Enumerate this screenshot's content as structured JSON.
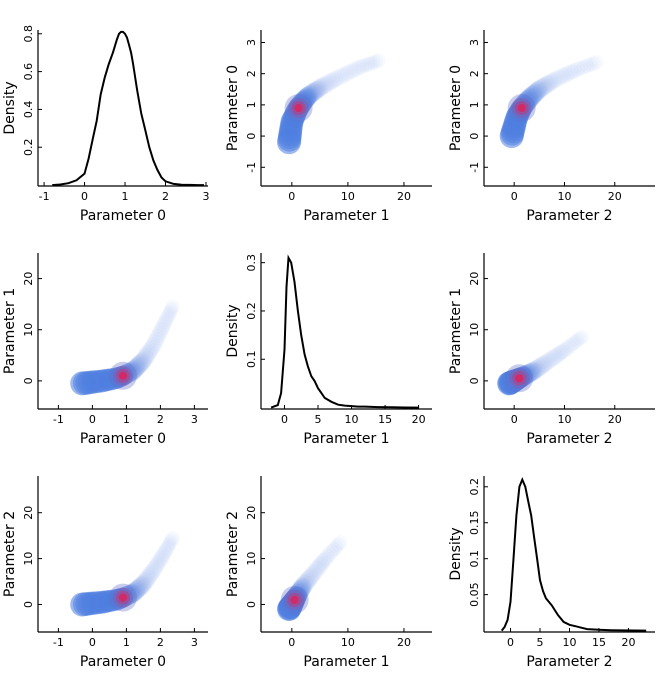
{
  "figure": {
    "type": "pairplot",
    "parameter_labels": [
      "Parameter 0",
      "Parameter 1",
      "Parameter 2"
    ],
    "density_label": "Density",
    "colors": {
      "curve": "#000000",
      "heat_low": "#4f7fe0",
      "heat_high": "#e0205a",
      "background": "#ffffff"
    }
  },
  "chart_data": [
    {
      "type": "line",
      "panel": "0-0",
      "xlabel": "Parameter 0",
      "ylabel": "Density",
      "xlim": [
        -1.15,
        3.05
      ],
      "ylim": [
        -0.005,
        0.82
      ],
      "xticks": [
        -1,
        0,
        1,
        2,
        3
      ],
      "yticks": [
        0.2,
        0.4,
        0.6,
        0.8
      ],
      "x": [
        -0.8,
        -0.6,
        -0.4,
        -0.2,
        0,
        0.1,
        0.2,
        0.3,
        0.4,
        0.5,
        0.6,
        0.7,
        0.8,
        0.85,
        0.9,
        0.95,
        1.0,
        1.05,
        1.1,
        1.15,
        1.2,
        1.3,
        1.4,
        1.5,
        1.6,
        1.7,
        1.8,
        1.9,
        2.0,
        2.2,
        2.4,
        2.6,
        2.8,
        2.95
      ],
      "y": [
        0,
        0.003,
        0.01,
        0.025,
        0.06,
        0.14,
        0.24,
        0.34,
        0.48,
        0.57,
        0.64,
        0.7,
        0.77,
        0.8,
        0.81,
        0.81,
        0.8,
        0.78,
        0.74,
        0.7,
        0.64,
        0.5,
        0.38,
        0.29,
        0.2,
        0.13,
        0.08,
        0.04,
        0.02,
        0.006,
        0.002,
        0.001,
        0,
        0
      ]
    },
    {
      "type": "heatmap",
      "panel": "0-1",
      "xlabel": "Parameter 1",
      "ylabel": "Parameter 0",
      "xlim": [
        -5.5,
        25
      ],
      "ylim": [
        -1.6,
        3.4
      ],
      "xticks": [
        0,
        10,
        20
      ],
      "yticks": [
        -1,
        0,
        1,
        2,
        3
      ],
      "mode_x": 1.2,
      "mode_y": 0.9,
      "ridge": [
        [
          -0.5,
          -0.2
        ],
        [
          0,
          0.45
        ],
        [
          1,
          0.85
        ],
        [
          2,
          1.1
        ],
        [
          3,
          1.3
        ],
        [
          5,
          1.55
        ],
        [
          8,
          1.85
        ],
        [
          12,
          2.2
        ],
        [
          16,
          2.45
        ]
      ]
    },
    {
      "type": "heatmap",
      "panel": "0-2",
      "xlabel": "Parameter 2",
      "ylabel": "Parameter 0",
      "xlim": [
        -6,
        28
      ],
      "ylim": [
        -1.6,
        3.4
      ],
      "xticks": [
        0,
        10,
        20
      ],
      "yticks": [
        -1,
        0,
        1,
        2,
        3
      ],
      "mode_x": 1.5,
      "mode_y": 0.9,
      "ridge": [
        [
          -0.5,
          0.0
        ],
        [
          0.5,
          0.6
        ],
        [
          1.5,
          0.9
        ],
        [
          3,
          1.2
        ],
        [
          5,
          1.5
        ],
        [
          8,
          1.8
        ],
        [
          12,
          2.1
        ],
        [
          17,
          2.4
        ]
      ]
    },
    {
      "type": "heatmap",
      "panel": "1-0",
      "xlabel": "Parameter 0",
      "ylabel": "Parameter 1",
      "xlim": [
        -1.6,
        3.4
      ],
      "ylim": [
        -5.5,
        25
      ],
      "xticks": [
        -1,
        0,
        1,
        2,
        3
      ],
      "yticks": [
        0,
        10,
        20
      ],
      "mode_x": 0.9,
      "mode_y": 1.0,
      "ridge": [
        [
          -0.3,
          -0.5
        ],
        [
          0.3,
          0
        ],
        [
          0.7,
          0.5
        ],
        [
          0.9,
          1
        ],
        [
          1.2,
          2
        ],
        [
          1.5,
          4
        ],
        [
          1.8,
          7
        ],
        [
          2.1,
          11
        ],
        [
          2.4,
          15
        ]
      ]
    },
    {
      "type": "line",
      "panel": "1-1",
      "xlabel": "Parameter 1",
      "ylabel": "Density",
      "xlim": [
        -3.5,
        22
      ],
      "ylim": [
        -0.003,
        0.32
      ],
      "xticks": [
        0,
        5,
        10,
        15,
        20
      ],
      "yticks": [
        0.1,
        0.2,
        0.3
      ],
      "x": [
        -2,
        -1,
        -0.5,
        0,
        0.3,
        0.6,
        1,
        1.5,
        2,
        2.5,
        3,
        3.5,
        4,
        4.5,
        5,
        5.5,
        6,
        7,
        8,
        9,
        10,
        11,
        12,
        14,
        16,
        18,
        20
      ],
      "y": [
        0,
        0.005,
        0.03,
        0.12,
        0.25,
        0.31,
        0.3,
        0.26,
        0.2,
        0.15,
        0.11,
        0.085,
        0.065,
        0.055,
        0.04,
        0.03,
        0.02,
        0.012,
        0.006,
        0.004,
        0.003,
        0.002,
        0.002,
        0.001,
        0.0005,
        0.0002,
        0
      ]
    },
    {
      "type": "heatmap",
      "panel": "1-2",
      "xlabel": "Parameter 2",
      "ylabel": "Parameter 1",
      "xlim": [
        -6,
        28
      ],
      "ylim": [
        -5.5,
        25
      ],
      "xticks": [
        0,
        10,
        20
      ],
      "yticks": [
        0,
        10,
        20
      ],
      "mode_x": 1.0,
      "mode_y": 0.5,
      "ridge": [
        [
          -1,
          -0.5
        ],
        [
          0,
          0
        ],
        [
          1,
          0.5
        ],
        [
          2,
          1
        ],
        [
          4,
          2
        ],
        [
          7,
          4
        ],
        [
          10,
          6
        ],
        [
          14,
          9
        ]
      ]
    },
    {
      "type": "heatmap",
      "panel": "2-0",
      "xlabel": "Parameter 0",
      "ylabel": "Parameter 2",
      "xlim": [
        -1.6,
        3.4
      ],
      "ylim": [
        -6,
        28
      ],
      "xticks": [
        -1,
        0,
        1,
        2,
        3
      ],
      "yticks": [
        0,
        10,
        20
      ],
      "mode_x": 0.9,
      "mode_y": 1.5,
      "ridge": [
        [
          -0.3,
          0
        ],
        [
          0.3,
          0.5
        ],
        [
          0.7,
          1
        ],
        [
          0.9,
          1.5
        ],
        [
          1.2,
          2.5
        ],
        [
          1.5,
          4.5
        ],
        [
          1.8,
          7.5
        ],
        [
          2.1,
          11
        ],
        [
          2.4,
          15
        ]
      ]
    },
    {
      "type": "heatmap",
      "panel": "2-1",
      "xlabel": "Parameter 1",
      "ylabel": "Parameter 2",
      "xlim": [
        -5.5,
        25
      ],
      "ylim": [
        -6,
        28
      ],
      "xticks": [
        0,
        10,
        20
      ],
      "yticks": [
        0,
        10,
        20
      ],
      "mode_x": 0.5,
      "mode_y": 1.0,
      "ridge": [
        [
          -0.5,
          -1
        ],
        [
          0,
          0
        ],
        [
          0.5,
          1
        ],
        [
          1,
          2
        ],
        [
          2,
          4
        ],
        [
          4,
          7
        ],
        [
          6,
          10
        ],
        [
          9,
          14
        ]
      ]
    },
    {
      "type": "line",
      "panel": "2-2",
      "xlabel": "Parameter 2",
      "ylabel": "Density",
      "xlim": [
        -4.5,
        24.5
      ],
      "ylim": [
        -0.002,
        0.215
      ],
      "xticks": [
        0,
        5,
        10,
        15,
        20
      ],
      "yticks": [
        0.05,
        0.1,
        0.15,
        0.2
      ],
      "x": [
        -1.5,
        -1,
        -0.5,
        0,
        0.5,
        1,
        1.5,
        2,
        2.5,
        3,
        3.5,
        4,
        4.5,
        5,
        5.5,
        6,
        7,
        8,
        9,
        10,
        11,
        12,
        13,
        15,
        17,
        19,
        21,
        23
      ],
      "y": [
        0,
        0.005,
        0.015,
        0.04,
        0.1,
        0.16,
        0.2,
        0.21,
        0.2,
        0.18,
        0.16,
        0.13,
        0.1,
        0.07,
        0.055,
        0.045,
        0.035,
        0.022,
        0.012,
        0.008,
        0.006,
        0.004,
        0.002,
        0.001,
        0.0005,
        0.0002,
        0.0001,
        0
      ]
    }
  ]
}
